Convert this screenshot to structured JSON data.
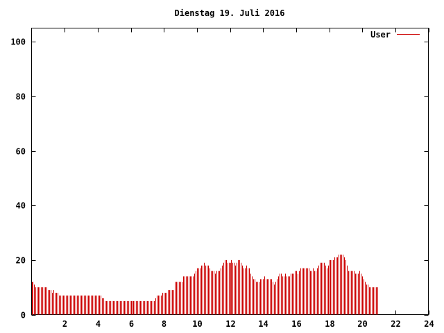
{
  "chart_data": {
    "type": "bar",
    "title": "Dienstag 19. Juli 2016",
    "xlabel": "",
    "ylabel": "",
    "xlim": [
      0,
      24
    ],
    "ylim": [
      0,
      105
    ],
    "x_ticks": [
      2,
      4,
      6,
      8,
      10,
      12,
      14,
      16,
      18,
      20,
      22,
      24
    ],
    "y_ticks": [
      0,
      20,
      40,
      60,
      80,
      100
    ],
    "grid": false,
    "legend": "top-right",
    "series": [
      {
        "name": "User",
        "color": "#cc0000",
        "start_hour": 0,
        "step_minutes": 5,
        "values": [
          12,
          12,
          11,
          10,
          10,
          10,
          10,
          10,
          10,
          10,
          10,
          10,
          9,
          9,
          9,
          8,
          9,
          8,
          8,
          8,
          7,
          7,
          7,
          7,
          7,
          7,
          7,
          7,
          7,
          7,
          7,
          7,
          7,
          7,
          7,
          7,
          7,
          7,
          7,
          7,
          7,
          7,
          7,
          7,
          7,
          7,
          7,
          7,
          7,
          7,
          7,
          6,
          6,
          5,
          5,
          5,
          5,
          5,
          5,
          5,
          5,
          5,
          5,
          5,
          5,
          5,
          5,
          5,
          5,
          5,
          5,
          5,
          5,
          5,
          5,
          5,
          5,
          5,
          5,
          5,
          5,
          5,
          5,
          5,
          5,
          5,
          5,
          5,
          5,
          5,
          6,
          7,
          7,
          7,
          7,
          8,
          8,
          8,
          8,
          9,
          9,
          9,
          9,
          9,
          12,
          12,
          12,
          12,
          12,
          12,
          14,
          14,
          14,
          14,
          14,
          14,
          14,
          14,
          15,
          16,
          17,
          17,
          17,
          18,
          18,
          19,
          18,
          18,
          18,
          17,
          16,
          16,
          16,
          15,
          16,
          16,
          16,
          17,
          18,
          19,
          20,
          20,
          19,
          19,
          19,
          20,
          19,
          19,
          18,
          19,
          20,
          20,
          19,
          18,
          17,
          17,
          18,
          17,
          17,
          15,
          14,
          13,
          13,
          12,
          12,
          12,
          13,
          13,
          13,
          14,
          13,
          13,
          13,
          13,
          13,
          12,
          11,
          12,
          13,
          14,
          15,
          15,
          14,
          14,
          15,
          14,
          14,
          14,
          15,
          15,
          15,
          16,
          16,
          15,
          16,
          17,
          17,
          17,
          17,
          17,
          17,
          17,
          16,
          16,
          17,
          16,
          16,
          17,
          18,
          19,
          19,
          19,
          19,
          18,
          17,
          18,
          20,
          20,
          20,
          20,
          21,
          21,
          21,
          22,
          22,
          22,
          22,
          21,
          20,
          18,
          16,
          16,
          16,
          16,
          16,
          15,
          15,
          15,
          16,
          15,
          14,
          13,
          12,
          11,
          11,
          10,
          10,
          10,
          10,
          10,
          10,
          10
        ]
      }
    ]
  }
}
